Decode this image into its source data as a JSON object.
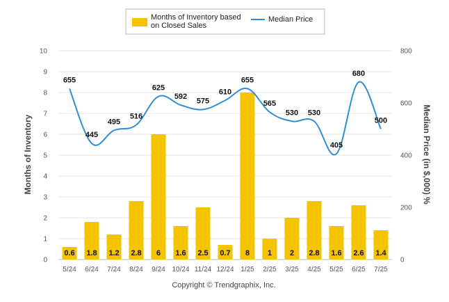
{
  "chart_data": {
    "type": "bar",
    "categories": [
      "5/24",
      "6/24",
      "7/24",
      "8/24",
      "9/24",
      "10/24",
      "11/24",
      "12/24",
      "1/25",
      "2/25",
      "3/25",
      "4/25",
      "5/25",
      "6/25",
      "7/25"
    ],
    "series": [
      {
        "name": "Months of Inventory based on Closed Sales",
        "type": "bar",
        "axis": "left",
        "color": "#F5C400",
        "values": [
          0.6,
          1.8,
          1.2,
          2.8,
          6,
          1.6,
          2.5,
          0.7,
          8,
          1,
          2,
          2.8,
          1.6,
          2.6,
          1.4
        ],
        "labels": [
          "0.6",
          "1.8",
          "1.2",
          "2.8",
          "6",
          "1.6",
          "2.5",
          "0.7",
          "8",
          "1",
          "2",
          "2.8",
          "1.6",
          "2.6",
          "1.4"
        ]
      },
      {
        "name": "Median Price",
        "type": "line",
        "axis": "right",
        "color": "#2E8FD6",
        "smooth": true,
        "values": [
          655,
          445,
          495,
          516,
          625,
          592,
          575,
          610,
          655,
          565,
          530,
          530,
          405,
          680,
          500
        ],
        "labels": [
          "655",
          "445",
          "495",
          "516",
          "625",
          "592",
          "575",
          "610",
          "655",
          "565",
          "530",
          "530",
          "405",
          "680",
          "500"
        ]
      }
    ],
    "legend": {
      "position": "top",
      "items": [
        {
          "line1": "Months of Inventory based",
          "line2": "on Closed Sales",
          "marker": "bar"
        },
        {
          "line1": "Median Price",
          "line2": "",
          "marker": "line"
        }
      ]
    },
    "left_axis": {
      "title": "Months of Inventory",
      "ylim": [
        0,
        10
      ],
      "ticks": [
        "0",
        "1",
        "2",
        "3",
        "4",
        "5",
        "6",
        "7",
        "8",
        "9",
        "10"
      ]
    },
    "right_axis": {
      "title": "Median Price (in $,000) %",
      "ylim": [
        0,
        800
      ],
      "ticks": [
        "0",
        "200",
        "400",
        "600",
        "800"
      ]
    },
    "grid": true,
    "credit": "Copyright © Trendgraphix, Inc."
  }
}
